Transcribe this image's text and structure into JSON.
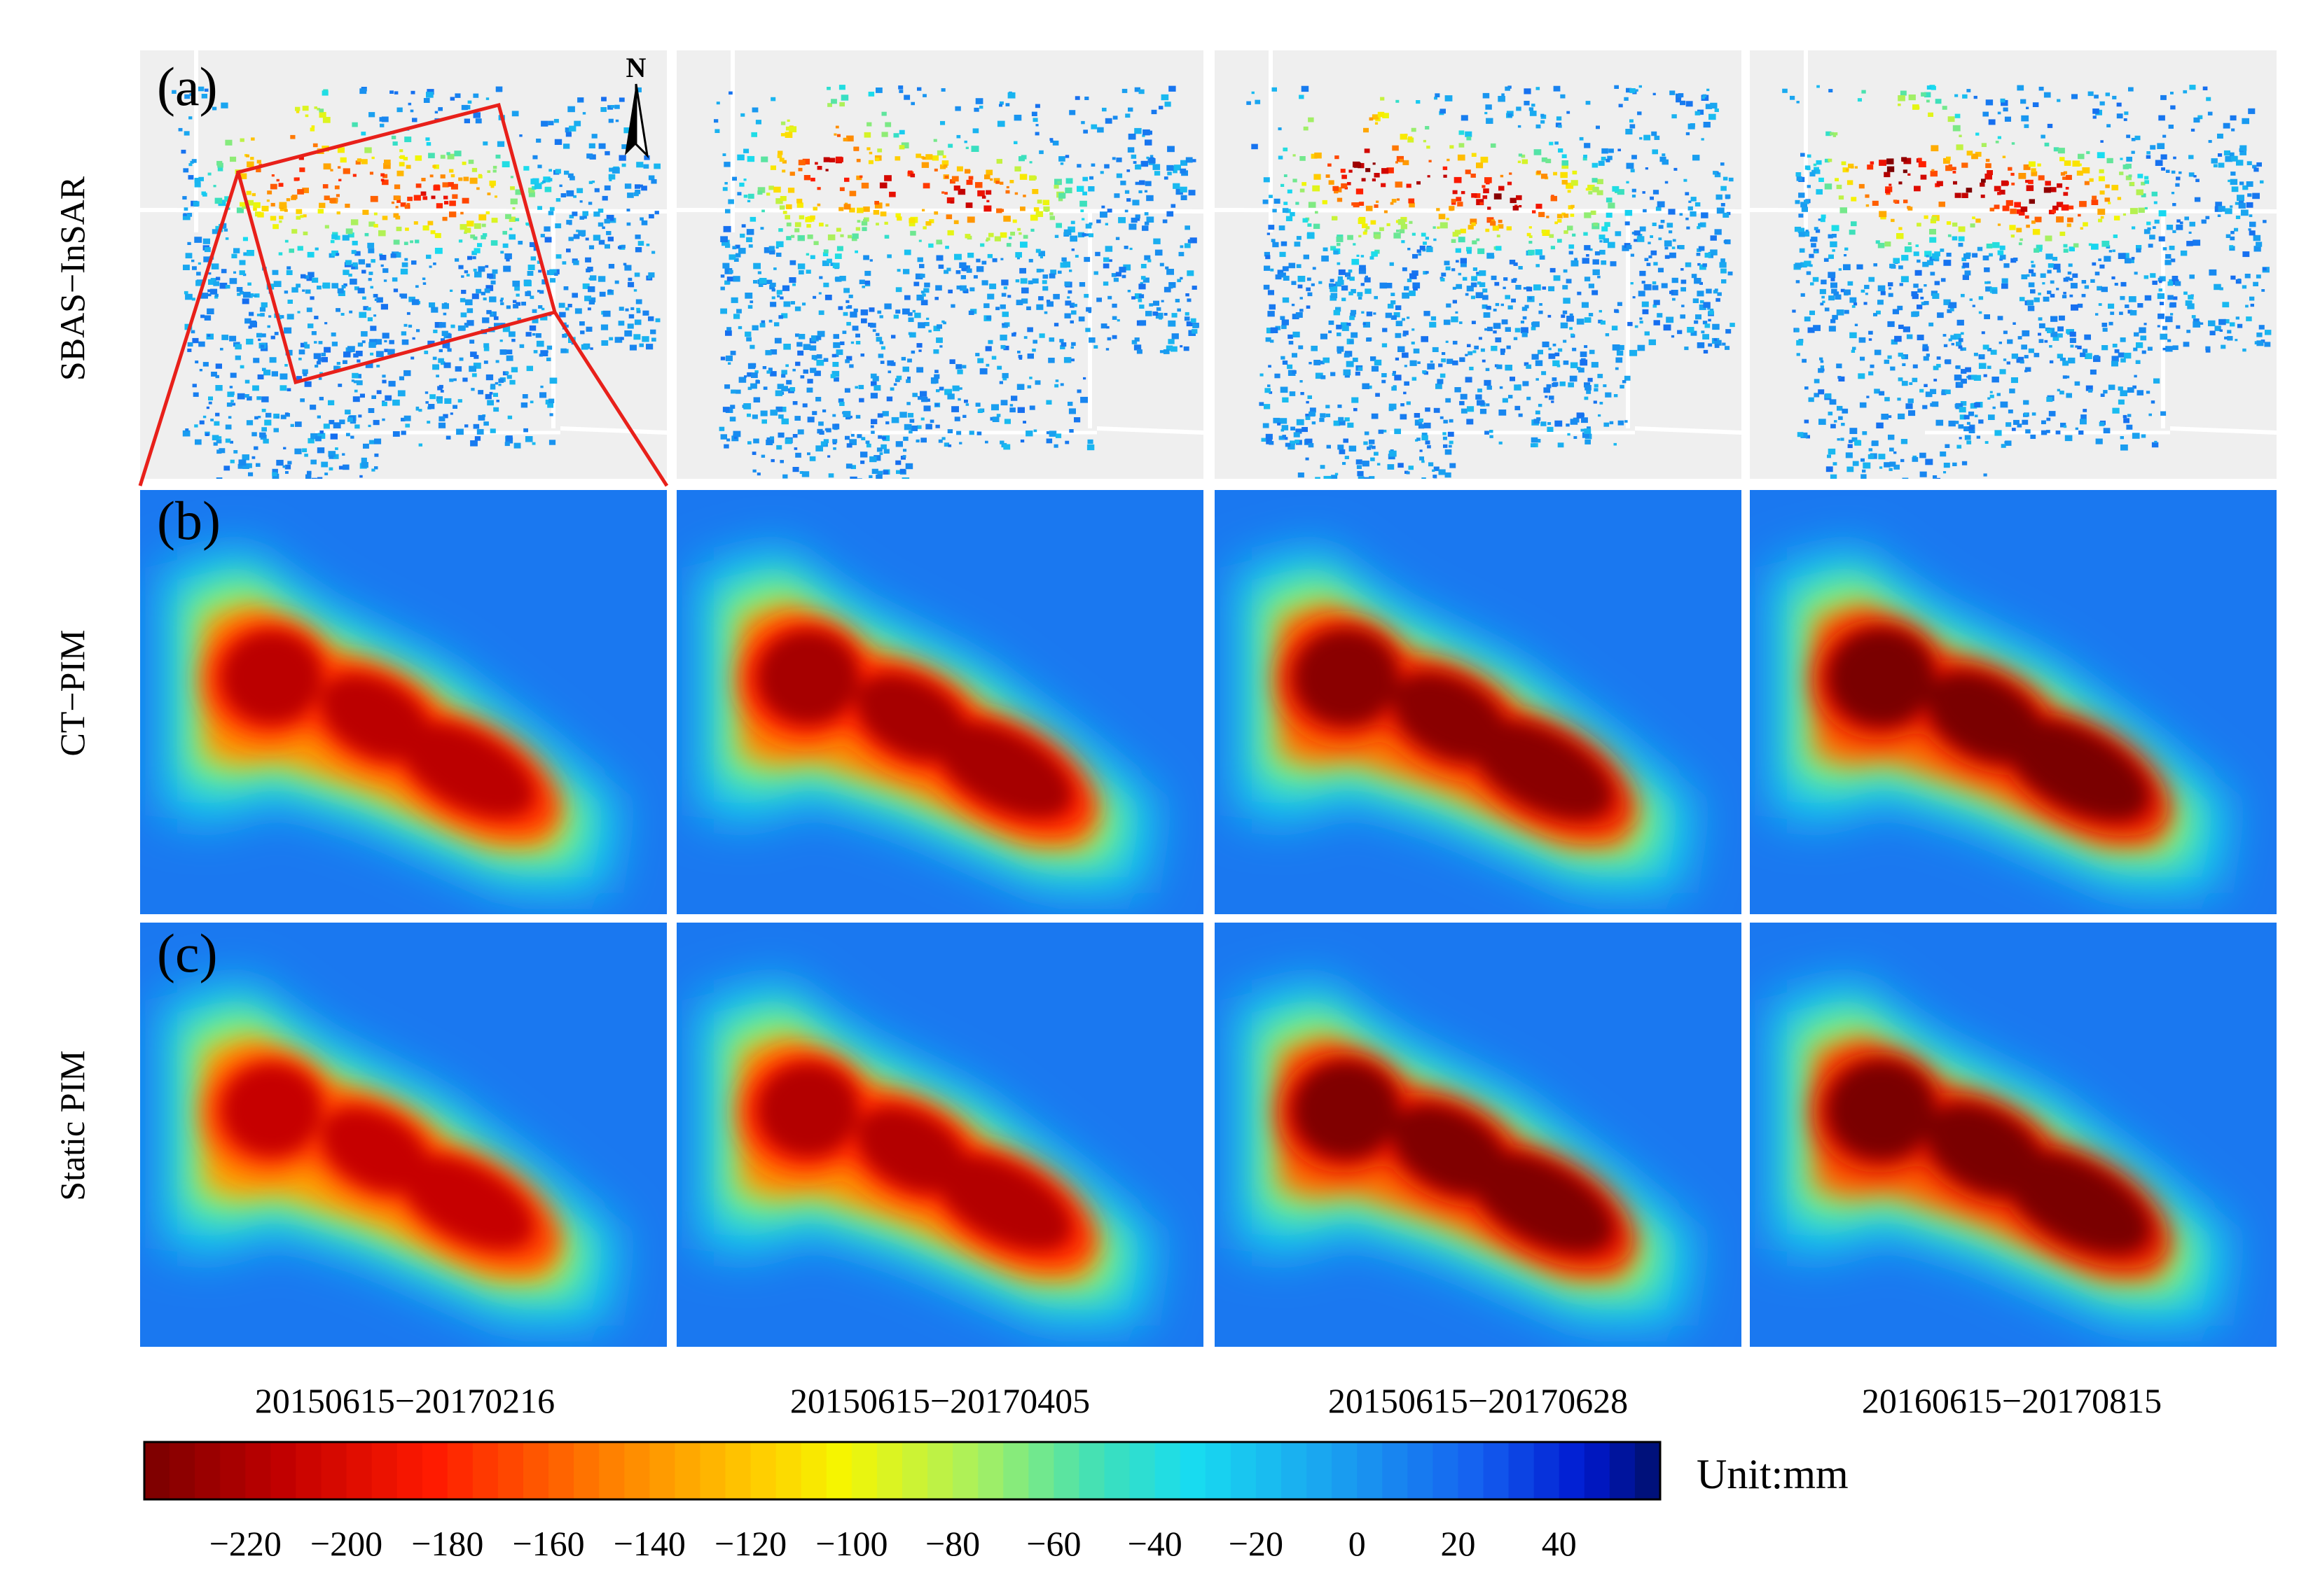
{
  "figure": {
    "rows": [
      {
        "panel_label": "(a)",
        "row_label": "SBAS−InSAR"
      },
      {
        "panel_label": "(b)",
        "row_label": "CT−PIM"
      },
      {
        "panel_label": "(c)",
        "row_label": "Static PIM"
      }
    ],
    "columns": [
      {
        "period": "20150615−20170216",
        "intensity": 0.68
      },
      {
        "period": "20150615−20170405",
        "intensity": 0.78
      },
      {
        "period": "20150615−20170628",
        "intensity": 0.92
      },
      {
        "period": "20160615−20170815",
        "intensity": 1.0
      }
    ],
    "north_label": "N",
    "colorbar": {
      "unit_label": "Unit:mm",
      "range_mm": [
        -240,
        60
      ],
      "ticks": [
        "−220",
        "−200",
        "−180",
        "−160",
        "−140",
        "−120",
        "−100",
        "−80",
        "−60",
        "−40",
        "−20",
        "0",
        "20",
        "40"
      ],
      "tick_values": [
        -220,
        -200,
        -180,
        -160,
        -140,
        -120,
        -100,
        -80,
        -60,
        -40,
        -20,
        0,
        20,
        40
      ]
    },
    "colors": {
      "background_blue": "#1a78f0",
      "frame_red": "#e8201a",
      "map_background": "#efefef",
      "road": "#ffffff"
    }
  }
}
